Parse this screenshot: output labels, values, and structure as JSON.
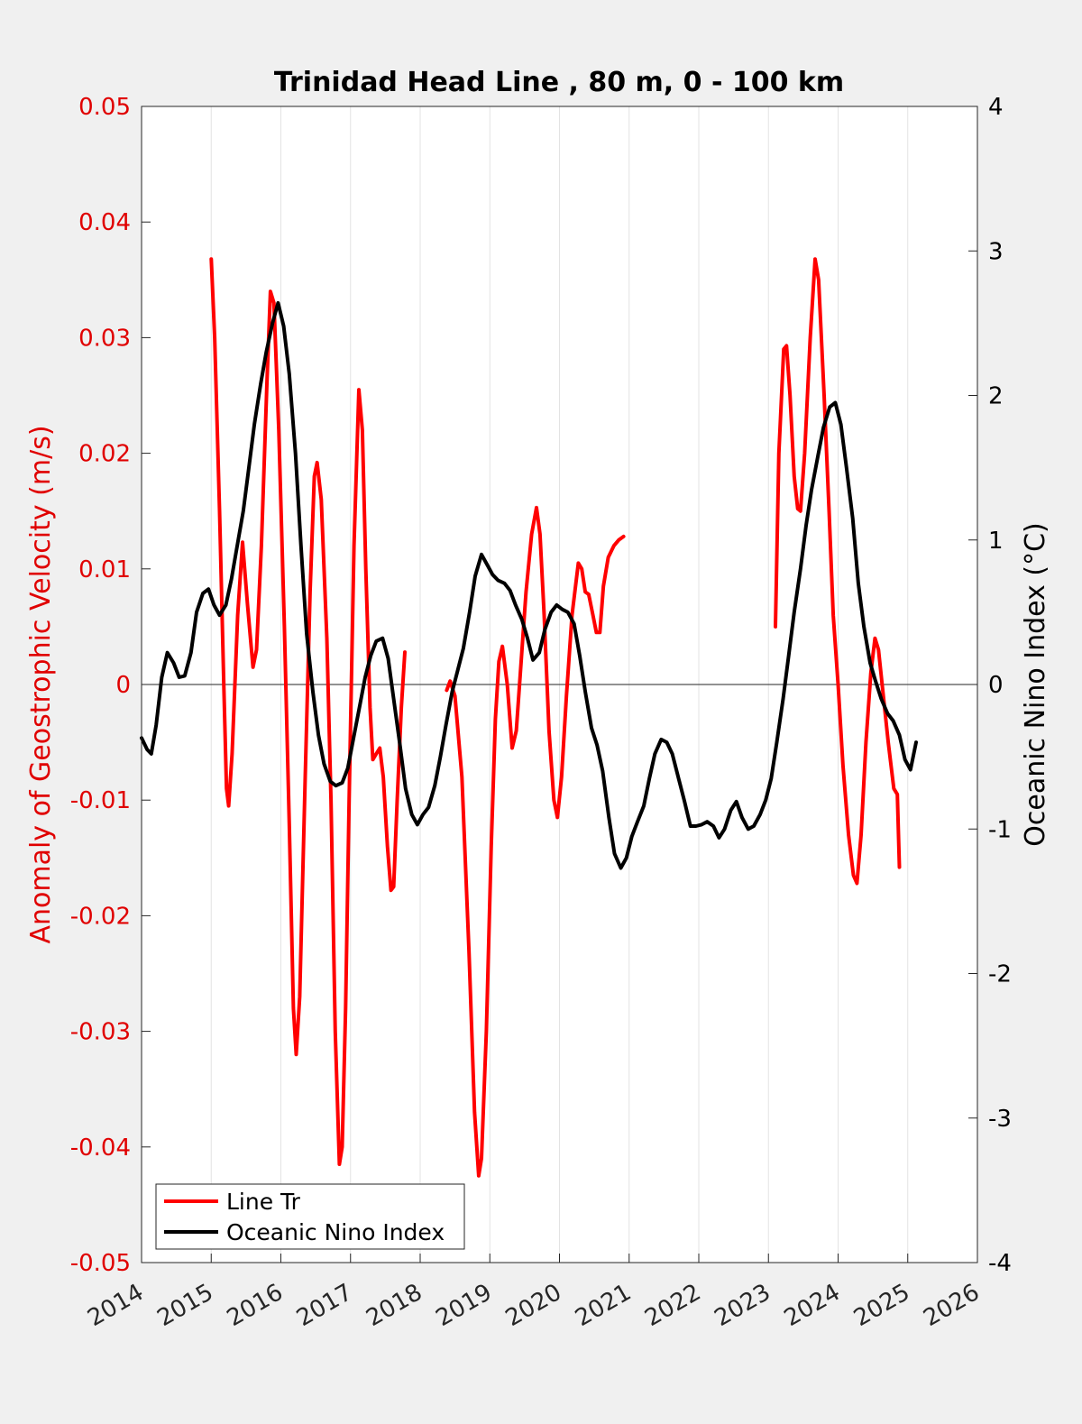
{
  "chart_data": {
    "type": "line",
    "title": "Trinidad Head Line , 80 m, 0 - 100 km",
    "ylabel": "Anomaly of Geostrophic Velocity (m/s)",
    "ylabel_right": "Oceanic Nino Index (°C)",
    "xlim": [
      2014,
      2026
    ],
    "ylim": [
      -0.05,
      0.05
    ],
    "ylim_right": [
      -4,
      4
    ],
    "x_ticks": [
      2014,
      2015,
      2016,
      2017,
      2018,
      2019,
      2020,
      2021,
      2022,
      2023,
      2024,
      2025,
      2026
    ],
    "y_ticks": [
      "-0.05",
      "-0.04",
      "-0.03",
      "-0.02",
      "-0.01",
      "0",
      "0.01",
      "0.02",
      "0.03",
      "0.04",
      "0.05"
    ],
    "y_ticks_right": [
      "-4",
      "-3",
      "-2",
      "-1",
      "0",
      "1",
      "2",
      "3",
      "4"
    ],
    "grid": "vertical",
    "zero_line": true,
    "legend_position": "bottom-left",
    "series": [
      {
        "name": "Line Tr",
        "axis": "left",
        "color": "#ff0000",
        "segments": [
          [
            [
              2015.0,
              0.0368
            ],
            [
              2015.05,
              0.03
            ],
            [
              2015.12,
              0.015
            ],
            [
              2015.18,
              0.0
            ],
            [
              2015.22,
              -0.009
            ],
            [
              2015.25,
              -0.0105
            ],
            [
              2015.3,
              -0.006
            ],
            [
              2015.38,
              0.006
            ],
            [
              2015.45,
              0.0123
            ],
            [
              2015.52,
              0.007
            ],
            [
              2015.6,
              0.0015
            ],
            [
              2015.65,
              0.003
            ],
            [
              2015.72,
              0.012
            ],
            [
              2015.8,
              0.026
            ],
            [
              2015.85,
              0.034
            ],
            [
              2015.9,
              0.033
            ],
            [
              2015.97,
              0.022
            ],
            [
              2016.05,
              0.005
            ],
            [
              2016.12,
              -0.012
            ],
            [
              2016.18,
              -0.028
            ],
            [
              2016.22,
              -0.032
            ],
            [
              2016.27,
              -0.027
            ],
            [
              2016.35,
              -0.008
            ],
            [
              2016.42,
              0.008
            ],
            [
              2016.48,
              0.018
            ],
            [
              2016.52,
              0.0192
            ],
            [
              2016.58,
              0.016
            ],
            [
              2016.66,
              0.004
            ],
            [
              2016.72,
              -0.01
            ],
            [
              2016.78,
              -0.03
            ],
            [
              2016.84,
              -0.0415
            ],
            [
              2016.88,
              -0.04
            ],
            [
              2016.93,
              -0.028
            ],
            [
              2016.98,
              -0.01
            ],
            [
              2017.05,
              0.012
            ],
            [
              2017.12,
              0.0255
            ],
            [
              2017.17,
              0.022
            ],
            [
              2017.22,
              0.01
            ],
            [
              2017.28,
              -0.002
            ],
            [
              2017.32,
              -0.0065
            ],
            [
              2017.37,
              -0.006
            ],
            [
              2017.42,
              -0.0055
            ],
            [
              2017.47,
              -0.008
            ],
            [
              2017.53,
              -0.014
            ],
            [
              2017.58,
              -0.0178
            ],
            [
              2017.62,
              -0.0175
            ],
            [
              2017.67,
              -0.01
            ],
            [
              2017.73,
              -0.002
            ],
            [
              2017.78,
              0.0028
            ]
          ],
          [
            [
              2018.38,
              -0.0005
            ],
            [
              2018.43,
              0.0003
            ],
            [
              2018.5,
              -0.001
            ],
            [
              2018.6,
              -0.008
            ],
            [
              2018.7,
              -0.023
            ],
            [
              2018.78,
              -0.037
            ],
            [
              2018.84,
              -0.0425
            ],
            [
              2018.88,
              -0.041
            ],
            [
              2018.95,
              -0.03
            ],
            [
              2019.02,
              -0.014
            ],
            [
              2019.08,
              -0.003
            ],
            [
              2019.13,
              0.002
            ],
            [
              2019.18,
              0.0033
            ],
            [
              2019.25,
              0.0
            ],
            [
              2019.32,
              -0.0055
            ],
            [
              2019.38,
              -0.004
            ],
            [
              2019.45,
              0.002
            ],
            [
              2019.52,
              0.008
            ],
            [
              2019.6,
              0.013
            ],
            [
              2019.67,
              0.0153
            ],
            [
              2019.72,
              0.013
            ],
            [
              2019.78,
              0.006
            ],
            [
              2019.85,
              -0.004
            ],
            [
              2019.92,
              -0.01
            ],
            [
              2019.97,
              -0.0115
            ],
            [
              2020.03,
              -0.008
            ],
            [
              2020.1,
              -0.001
            ],
            [
              2020.18,
              0.006
            ],
            [
              2020.27,
              0.0105
            ],
            [
              2020.32,
              0.01
            ],
            [
              2020.37,
              0.008
            ],
            [
              2020.42,
              0.0078
            ],
            [
              2020.48,
              0.006
            ],
            [
              2020.53,
              0.0045
            ],
            [
              2020.58,
              0.0045
            ],
            [
              2020.63,
              0.0085
            ],
            [
              2020.7,
              0.011
            ],
            [
              2020.78,
              0.012
            ],
            [
              2020.85,
              0.0125
            ],
            [
              2020.92,
              0.0128
            ]
          ],
          [
            [
              2023.1,
              0.005
            ],
            [
              2023.15,
              0.02
            ],
            [
              2023.22,
              0.029
            ],
            [
              2023.26,
              0.0293
            ],
            [
              2023.31,
              0.025
            ],
            [
              2023.37,
              0.018
            ],
            [
              2023.42,
              0.0152
            ],
            [
              2023.46,
              0.015
            ],
            [
              2023.52,
              0.02
            ],
            [
              2023.6,
              0.03
            ],
            [
              2023.67,
              0.0368
            ],
            [
              2023.72,
              0.035
            ],
            [
              2023.8,
              0.025
            ],
            [
              2023.87,
              0.015
            ],
            [
              2023.93,
              0.006
            ],
            [
              2024.0,
              0.0
            ],
            [
              2024.07,
              -0.007
            ],
            [
              2024.15,
              -0.013
            ],
            [
              2024.22,
              -0.0165
            ],
            [
              2024.27,
              -0.0172
            ],
            [
              2024.33,
              -0.013
            ],
            [
              2024.4,
              -0.005
            ],
            [
              2024.47,
              0.001
            ],
            [
              2024.53,
              0.004
            ],
            [
              2024.58,
              0.003
            ],
            [
              2024.65,
              -0.001
            ],
            [
              2024.72,
              -0.005
            ],
            [
              2024.8,
              -0.009
            ],
            [
              2024.85,
              -0.0095
            ],
            [
              2024.88,
              -0.0158
            ]
          ]
        ]
      },
      {
        "name": "Oceanic Nino Index",
        "axis": "right",
        "color": "#000000",
        "segments": [
          [
            [
              2014.0,
              -0.37
            ],
            [
              2014.08,
              -0.45
            ],
            [
              2014.14,
              -0.48
            ],
            [
              2014.21,
              -0.28
            ],
            [
              2014.29,
              0.05
            ],
            [
              2014.37,
              0.22
            ],
            [
              2014.46,
              0.15
            ],
            [
              2014.54,
              0.05
            ],
            [
              2014.62,
              0.06
            ],
            [
              2014.71,
              0.22
            ],
            [
              2014.79,
              0.5
            ],
            [
              2014.88,
              0.63
            ],
            [
              2014.96,
              0.66
            ],
            [
              2015.04,
              0.55
            ],
            [
              2015.12,
              0.48
            ],
            [
              2015.21,
              0.55
            ],
            [
              2015.29,
              0.73
            ],
            [
              2015.37,
              0.95
            ],
            [
              2015.46,
              1.2
            ],
            [
              2015.54,
              1.5
            ],
            [
              2015.62,
              1.8
            ],
            [
              2015.71,
              2.08
            ],
            [
              2015.79,
              2.3
            ],
            [
              2015.88,
              2.5
            ],
            [
              2015.96,
              2.64
            ],
            [
              2016.04,
              2.48
            ],
            [
              2016.12,
              2.15
            ],
            [
              2016.21,
              1.6
            ],
            [
              2016.29,
              0.95
            ],
            [
              2016.37,
              0.35
            ],
            [
              2016.46,
              -0.05
            ],
            [
              2016.54,
              -0.35
            ],
            [
              2016.62,
              -0.55
            ],
            [
              2016.71,
              -0.67
            ],
            [
              2016.79,
              -0.7
            ],
            [
              2016.88,
              -0.68
            ],
            [
              2016.96,
              -0.58
            ],
            [
              2017.04,
              -0.38
            ],
            [
              2017.12,
              -0.18
            ],
            [
              2017.21,
              0.05
            ],
            [
              2017.29,
              0.2
            ],
            [
              2017.37,
              0.3
            ],
            [
              2017.46,
              0.32
            ],
            [
              2017.54,
              0.18
            ],
            [
              2017.62,
              -0.1
            ],
            [
              2017.71,
              -0.42
            ],
            [
              2017.79,
              -0.72
            ],
            [
              2017.88,
              -0.9
            ],
            [
              2017.96,
              -0.97
            ],
            [
              2018.04,
              -0.9
            ],
            [
              2018.12,
              -0.85
            ],
            [
              2018.21,
              -0.7
            ],
            [
              2018.29,
              -0.5
            ],
            [
              2018.37,
              -0.28
            ],
            [
              2018.46,
              -0.05
            ],
            [
              2018.54,
              0.1
            ],
            [
              2018.62,
              0.25
            ],
            [
              2018.71,
              0.5
            ],
            [
              2018.79,
              0.75
            ],
            [
              2018.88,
              0.9
            ],
            [
              2018.96,
              0.83
            ],
            [
              2019.04,
              0.76
            ],
            [
              2019.12,
              0.72
            ],
            [
              2019.21,
              0.7
            ],
            [
              2019.29,
              0.65
            ],
            [
              2019.37,
              0.55
            ],
            [
              2019.46,
              0.45
            ],
            [
              2019.54,
              0.32
            ],
            [
              2019.62,
              0.17
            ],
            [
              2019.71,
              0.22
            ],
            [
              2019.79,
              0.38
            ],
            [
              2019.88,
              0.5
            ],
            [
              2019.96,
              0.55
            ],
            [
              2020.04,
              0.52
            ],
            [
              2020.12,
              0.5
            ],
            [
              2020.21,
              0.42
            ],
            [
              2020.29,
              0.2
            ],
            [
              2020.37,
              -0.05
            ],
            [
              2020.46,
              -0.3
            ],
            [
              2020.54,
              -0.42
            ],
            [
              2020.62,
              -0.6
            ],
            [
              2020.71,
              -0.92
            ],
            [
              2020.79,
              -1.17
            ],
            [
              2020.88,
              -1.27
            ],
            [
              2020.96,
              -1.2
            ],
            [
              2021.04,
              -1.05
            ],
            [
              2021.12,
              -0.95
            ],
            [
              2021.21,
              -0.84
            ],
            [
              2021.29,
              -0.65
            ],
            [
              2021.37,
              -0.48
            ],
            [
              2021.46,
              -0.38
            ],
            [
              2021.54,
              -0.4
            ],
            [
              2021.62,
              -0.48
            ],
            [
              2021.71,
              -0.65
            ],
            [
              2021.79,
              -0.8
            ],
            [
              2021.88,
              -0.98
            ],
            [
              2021.96,
              -0.98
            ],
            [
              2022.04,
              -0.97
            ],
            [
              2022.12,
              -0.95
            ],
            [
              2022.21,
              -0.98
            ],
            [
              2022.29,
              -1.06
            ],
            [
              2022.37,
              -1.0
            ],
            [
              2022.46,
              -0.87
            ],
            [
              2022.54,
              -0.81
            ],
            [
              2022.62,
              -0.92
            ],
            [
              2022.71,
              -1.0
            ],
            [
              2022.79,
              -0.98
            ],
            [
              2022.88,
              -0.9
            ],
            [
              2022.96,
              -0.8
            ],
            [
              2023.04,
              -0.65
            ],
            [
              2023.12,
              -0.4
            ],
            [
              2023.21,
              -0.1
            ],
            [
              2023.29,
              0.2
            ],
            [
              2023.37,
              0.5
            ],
            [
              2023.46,
              0.8
            ],
            [
              2023.54,
              1.1
            ],
            [
              2023.62,
              1.35
            ],
            [
              2023.71,
              1.58
            ],
            [
              2023.79,
              1.78
            ],
            [
              2023.88,
              1.92
            ],
            [
              2023.96,
              1.95
            ],
            [
              2024.04,
              1.8
            ],
            [
              2024.12,
              1.5
            ],
            [
              2024.21,
              1.15
            ],
            [
              2024.29,
              0.7
            ],
            [
              2024.37,
              0.4
            ],
            [
              2024.46,
              0.15
            ],
            [
              2024.54,
              0.02
            ],
            [
              2024.62,
              -0.1
            ],
            [
              2024.71,
              -0.2
            ],
            [
              2024.79,
              -0.25
            ],
            [
              2024.88,
              -0.35
            ],
            [
              2024.96,
              -0.52
            ],
            [
              2025.04,
              -0.59
            ],
            [
              2025.12,
              -0.4
            ]
          ]
        ]
      }
    ]
  }
}
